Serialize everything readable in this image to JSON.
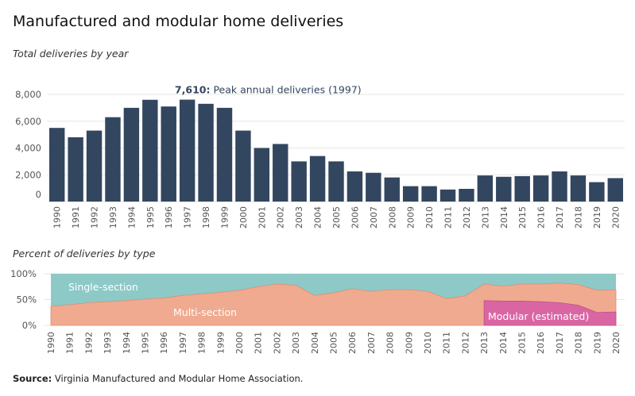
{
  "title": "Manufactured and modular home deliveries",
  "source": {
    "label": "Source:",
    "text": "Virginia Manufactured and Modular Home Association."
  },
  "chart_data": [
    {
      "type": "bar",
      "subtitle": "Total deliveries by year",
      "categories": [
        "1990",
        "1991",
        "1992",
        "1993",
        "1994",
        "1995",
        "1996",
        "1997",
        "1998",
        "1999",
        "2000",
        "2001",
        "2002",
        "2003",
        "2004",
        "2005",
        "2006",
        "2007",
        "2008",
        "2009",
        "2010",
        "2011",
        "2012",
        "2013",
        "2014",
        "2015",
        "2016",
        "2017",
        "2018",
        "2019",
        "2020"
      ],
      "values": [
        5500,
        4800,
        5300,
        6300,
        7000,
        7600,
        7100,
        7610,
        7300,
        7000,
        5300,
        4000,
        4300,
        3000,
        3400,
        3000,
        2250,
        2150,
        1800,
        1150,
        1150,
        900,
        950,
        1950,
        1850,
        1900,
        1950,
        2250,
        1950,
        1450,
        1750
      ],
      "ylim": [
        0,
        8000
      ],
      "yticks": [
        "0",
        "2,000",
        "4,000",
        "6,000",
        "8,000"
      ],
      "ytick_values": [
        0,
        2000,
        4000,
        6000,
        8000
      ],
      "annotation": {
        "category": "1997",
        "value_label": "7,610:",
        "text": "Peak annual deliveries (1997)"
      },
      "grid": true,
      "colors": {
        "bar": "#33465f",
        "grid": "#e6e6e6"
      }
    },
    {
      "type": "area",
      "subtitle": "Percent of deliveries by type",
      "categories": [
        "1990",
        "1991",
        "1992",
        "1993",
        "1994",
        "1995",
        "1996",
        "1997",
        "1998",
        "1999",
        "2000",
        "2001",
        "2002",
        "2003",
        "2004",
        "2005",
        "2006",
        "2007",
        "2008",
        "2009",
        "2010",
        "2011",
        "2012",
        "2013",
        "2014",
        "2015",
        "2016",
        "2017",
        "2018",
        "2019",
        "2020"
      ],
      "ylim": [
        0,
        100
      ],
      "yticks": [
        "0%",
        "50%",
        "100%"
      ],
      "ytick_values": [
        0,
        50,
        100
      ],
      "series": [
        {
          "name": "Single-section",
          "color": "#8dc9c6",
          "values": [
            100,
            100,
            100,
            100,
            100,
            100,
            100,
            100,
            100,
            100,
            100,
            100,
            100,
            100,
            100,
            100,
            100,
            100,
            100,
            100,
            100,
            100,
            100,
            100,
            100,
            100,
            100,
            100,
            100,
            100,
            100
          ]
        },
        {
          "name": "Multi-section",
          "color": "#f0aa90",
          "values": [
            37,
            40,
            44,
            46,
            48,
            51,
            53,
            58,
            61,
            64,
            68,
            75,
            80,
            78,
            58,
            63,
            71,
            66,
            69,
            69,
            66,
            52,
            57,
            80,
            76,
            80,
            80,
            82,
            79,
            68,
            69
          ]
        },
        {
          "name": "Modular (estimated)",
          "color": "#d966a3",
          "values": [
            null,
            null,
            null,
            null,
            null,
            null,
            null,
            null,
            null,
            null,
            null,
            null,
            null,
            null,
            null,
            null,
            null,
            null,
            null,
            null,
            null,
            null,
            null,
            48,
            47,
            47,
            46,
            44,
            39,
            25,
            26
          ]
        }
      ]
    }
  ]
}
